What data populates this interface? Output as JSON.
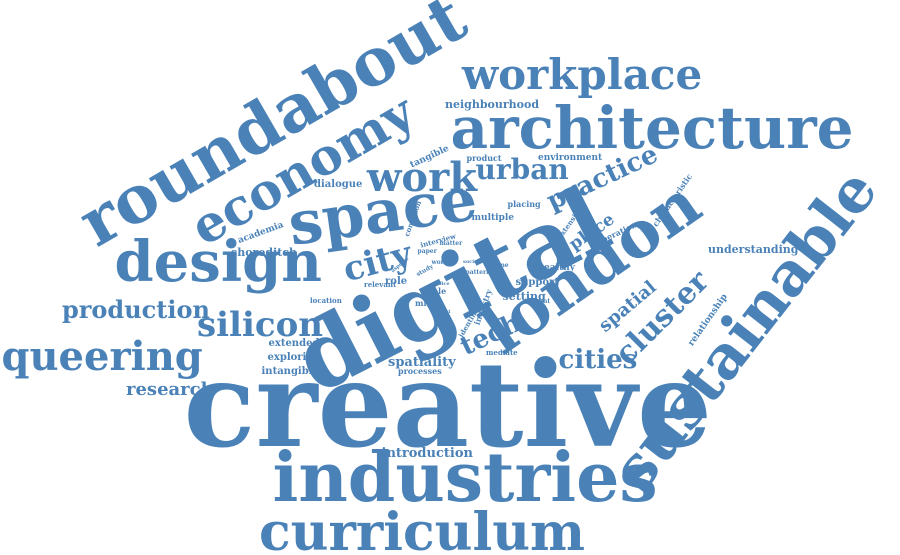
{
  "colors": {
    "text": "#4a82b8",
    "background": "#ffffff"
  },
  "words": [
    {
      "text": "creative"
    },
    {
      "text": "digital"
    },
    {
      "text": "industries"
    },
    {
      "text": "sustainable"
    },
    {
      "text": "roundabout"
    },
    {
      "text": "london"
    },
    {
      "text": "architecture"
    },
    {
      "text": "space"
    },
    {
      "text": "design"
    },
    {
      "text": "curriculum"
    },
    {
      "text": "economy"
    },
    {
      "text": "workplace"
    },
    {
      "text": "queering"
    },
    {
      "text": "cluster"
    },
    {
      "text": "work"
    },
    {
      "text": "silicon"
    },
    {
      "text": "production"
    },
    {
      "text": "city"
    },
    {
      "text": "practice"
    },
    {
      "text": "urban"
    },
    {
      "text": "cities"
    },
    {
      "text": "tech"
    },
    {
      "text": "spatial"
    },
    {
      "text": "place"
    },
    {
      "text": "research"
    },
    {
      "text": "spatiality"
    },
    {
      "text": "introduction"
    },
    {
      "text": "neighbourhood"
    },
    {
      "text": "understanding"
    },
    {
      "text": "shoreditch"
    },
    {
      "text": "extended"
    },
    {
      "text": "exploring"
    },
    {
      "text": "intangible"
    },
    {
      "text": "setting"
    },
    {
      "text": "support"
    },
    {
      "text": "role"
    },
    {
      "text": "relationship"
    },
    {
      "text": "academia"
    },
    {
      "text": "dialogue"
    },
    {
      "text": "tangible"
    },
    {
      "text": "product"
    },
    {
      "text": "environment"
    },
    {
      "text": "characteristic"
    },
    {
      "text": "operation"
    },
    {
      "text": "extension"
    },
    {
      "text": "multiple"
    },
    {
      "text": "placing"
    },
    {
      "text": "healthy"
    },
    {
      "text": "processes"
    },
    {
      "text": "mediate"
    },
    {
      "text": "identified"
    },
    {
      "text": "industry"
    },
    {
      "text": "interview"
    },
    {
      "text": "condition"
    },
    {
      "text": "micro"
    },
    {
      "text": "scale"
    },
    {
      "text": "relevant"
    },
    {
      "text": "location"
    },
    {
      "text": "worker"
    },
    {
      "text": "pattern"
    },
    {
      "text": "account"
    },
    {
      "text": "paper"
    },
    {
      "text": "matter"
    },
    {
      "text": "theme"
    },
    {
      "text": "study"
    },
    {
      "text": "aspects"
    },
    {
      "text": "social"
    },
    {
      "text": "event"
    },
    {
      "text": "office"
    }
  ]
}
